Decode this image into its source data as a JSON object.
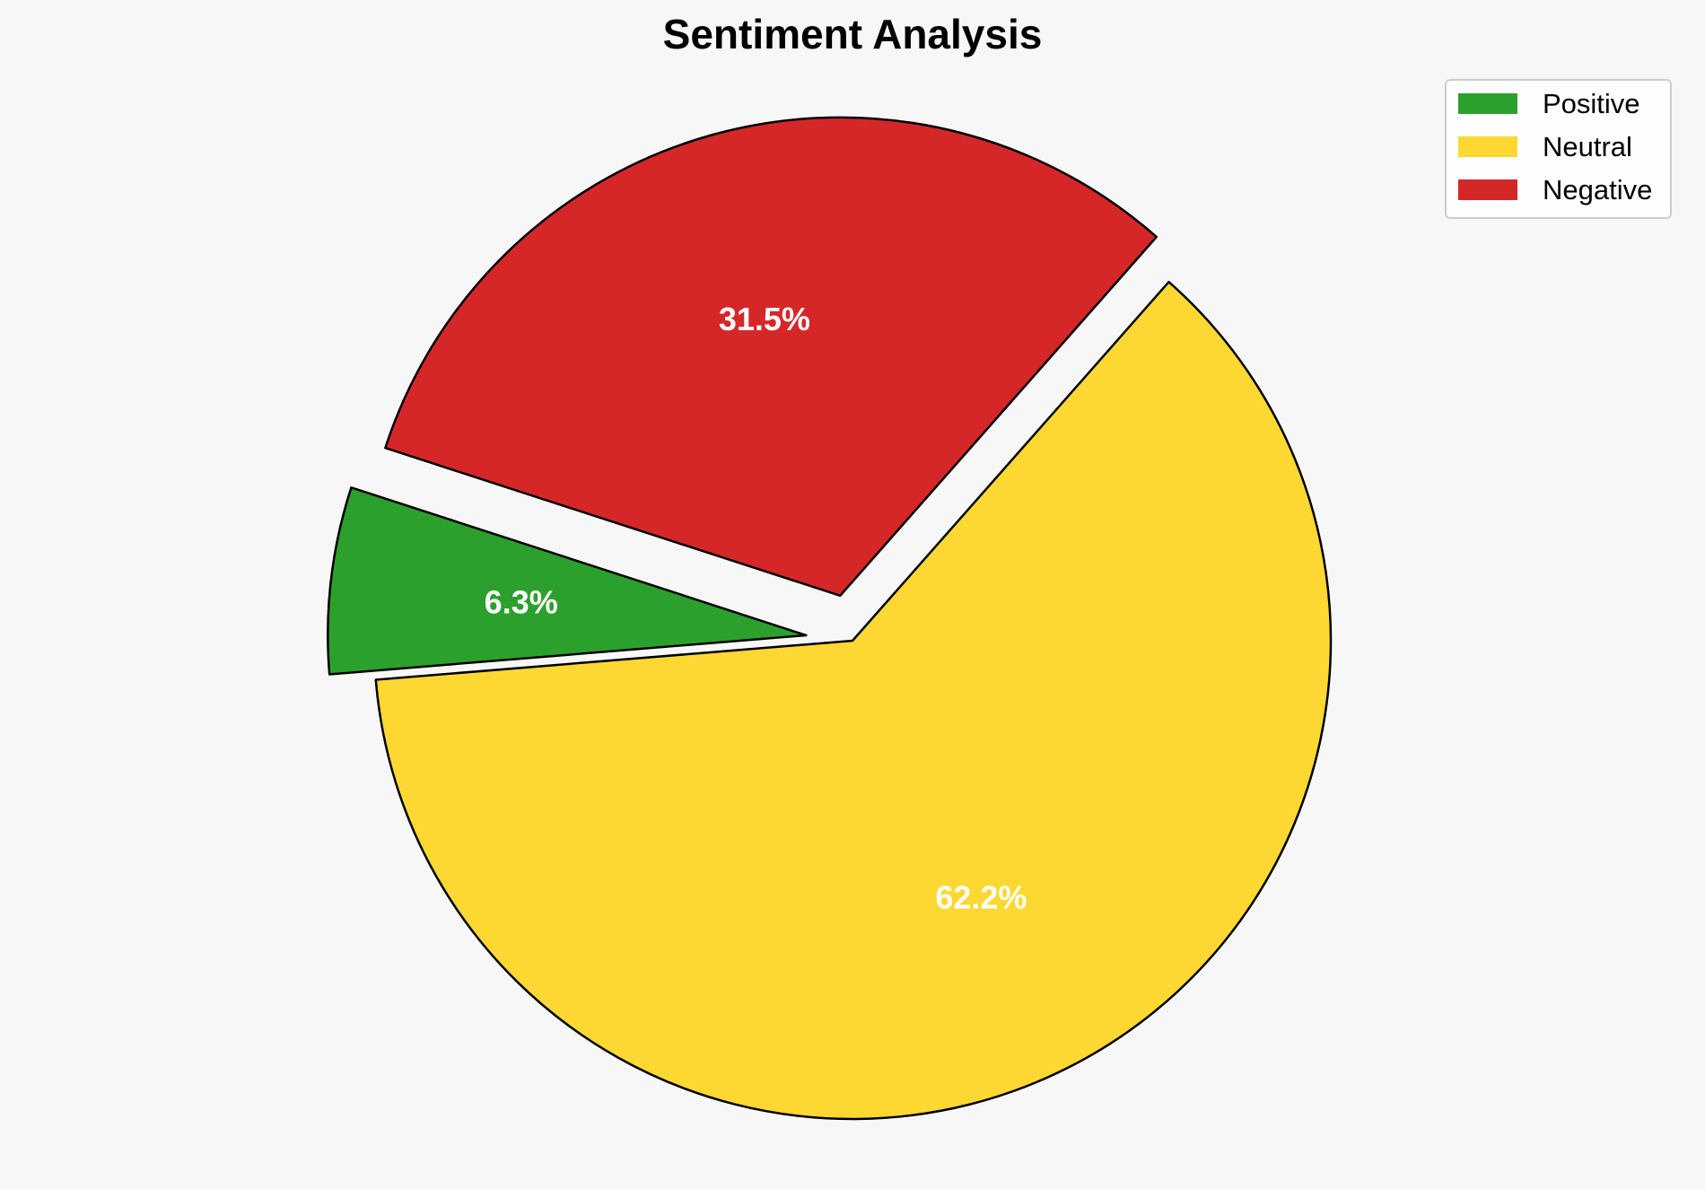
{
  "chart_data": {
    "type": "pie",
    "title": "Sentiment Analysis",
    "categories": [
      "Positive",
      "Neutral",
      "Negative"
    ],
    "values": [
      6.3,
      62.2,
      31.5
    ],
    "labels": [
      "6.3%",
      "62.2%",
      "31.5%"
    ],
    "colors": [
      "#2ca02c",
      "#fdd832",
      "#d62728"
    ],
    "exploded": true,
    "legend": {
      "position": "top-right",
      "entries": [
        "Positive",
        "Neutral",
        "Negative"
      ]
    }
  }
}
